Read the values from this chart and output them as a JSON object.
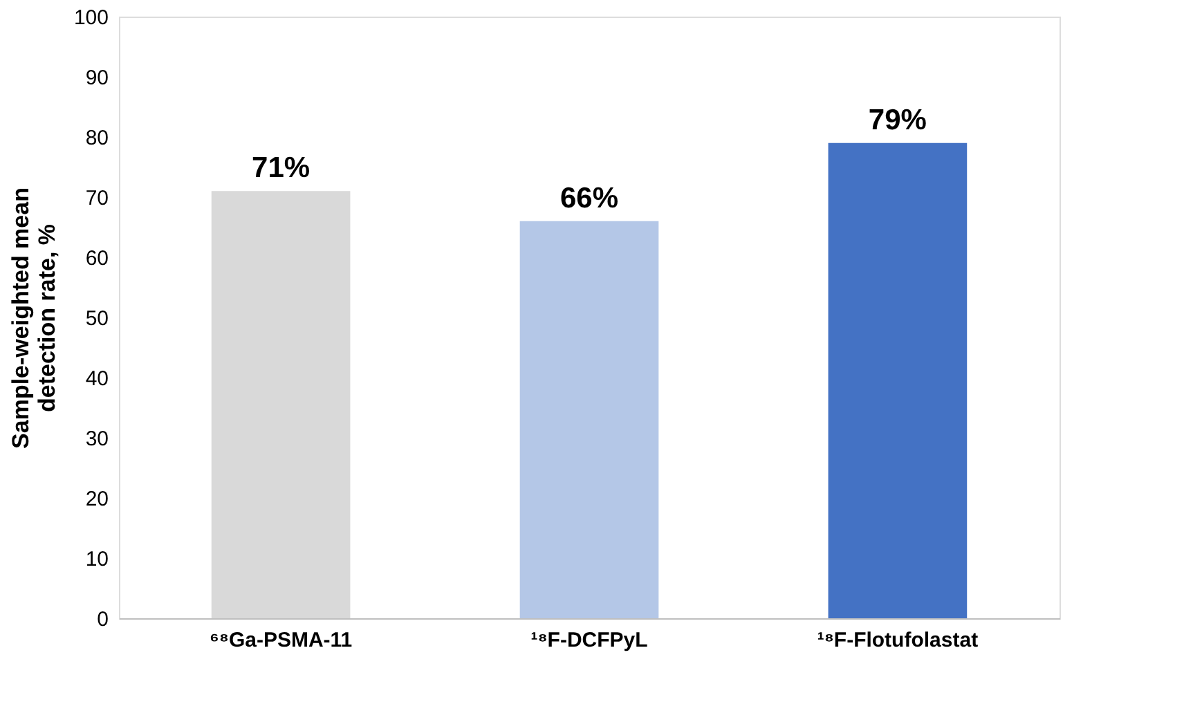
{
  "chart_data": {
    "type": "bar",
    "ylabel": "Sample-weighted mean detection rate, %",
    "categories": [
      "⁶⁸Ga-PSMA-11",
      "¹⁸F-DCFPyL",
      "¹⁸F-Flotufolastat"
    ],
    "values": [
      71,
      66,
      79
    ],
    "colors": [
      "#d9d9d9",
      "#b4c7e7",
      "#4472c4"
    ],
    "value_labels": [
      "71%",
      "66%",
      "79%"
    ],
    "ylim": [
      0,
      100
    ],
    "yticks": [
      0,
      10,
      20,
      30,
      40,
      50,
      60,
      70,
      80,
      90,
      100
    ],
    "grid": false
  }
}
